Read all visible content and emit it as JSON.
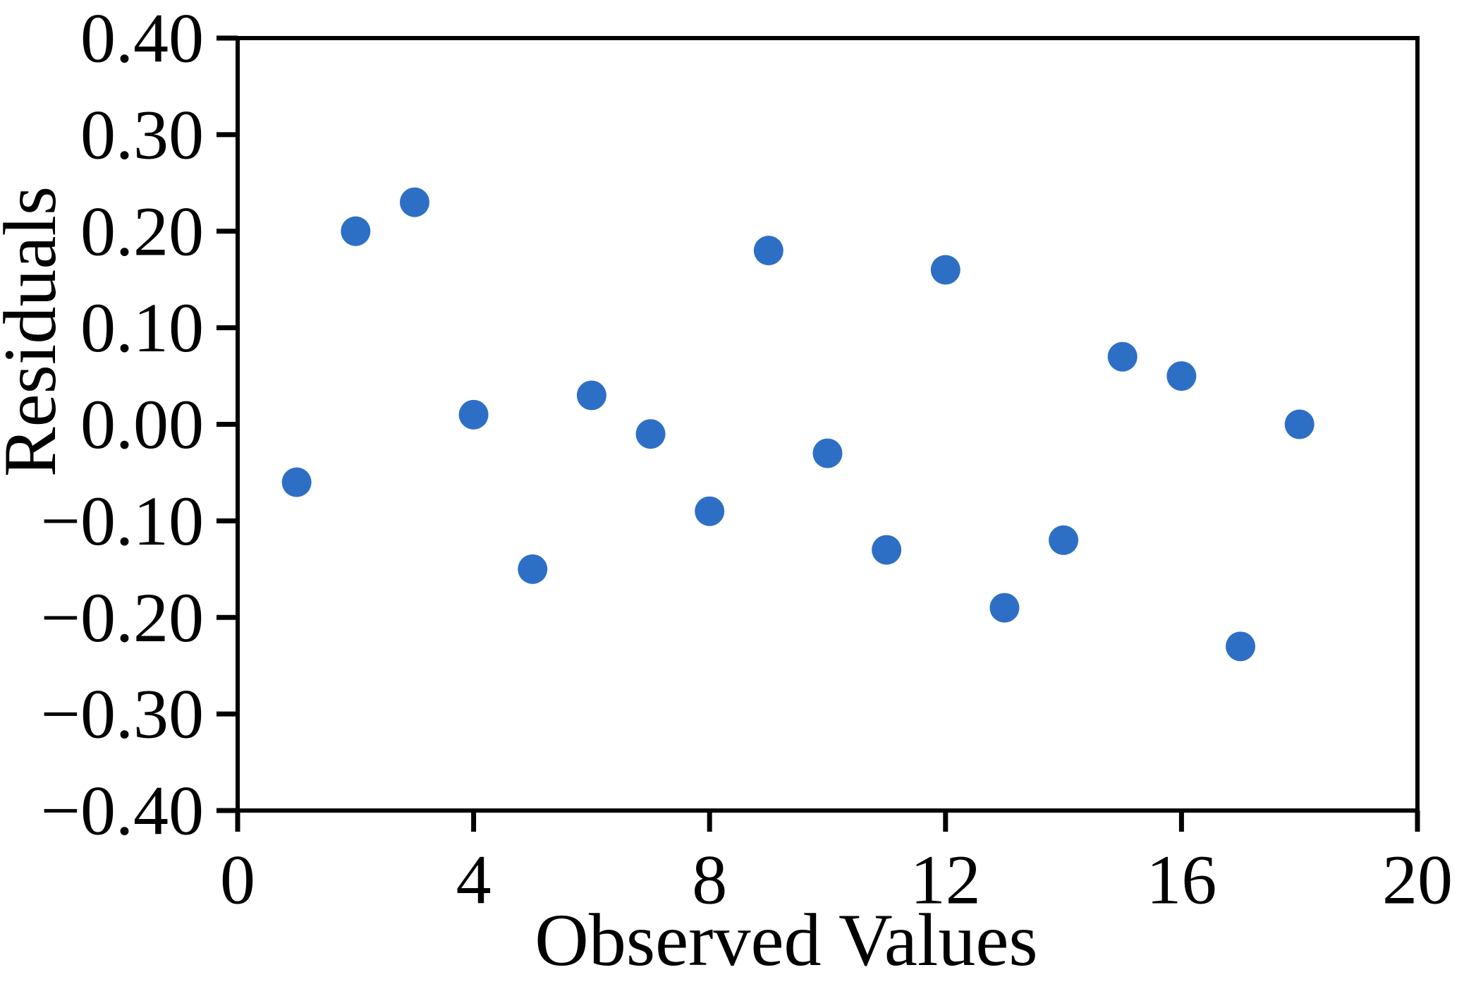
{
  "figure": {
    "background_color": "#ffffff"
  },
  "chart_data": {
    "type": "scatter",
    "title": "",
    "xlabel": "Observed Values",
    "ylabel": "Residuals",
    "xlim": [
      0,
      20
    ],
    "ylim": [
      -0.4,
      0.4
    ],
    "grid": false,
    "legend_position": "none",
    "xtick_values": [
      0,
      4,
      8,
      12,
      16,
      20
    ],
    "xtick_labels": [
      "0",
      "4",
      "8",
      "12",
      "16",
      "20"
    ],
    "ytick_values": [
      0.4,
      0.3,
      0.2,
      0.1,
      0.0,
      -0.1,
      -0.2,
      -0.3,
      -0.4
    ],
    "ytick_labels": [
      "0.40",
      "0.30",
      "0.20",
      "0.10",
      "0.00",
      "−0.10",
      "−0.20",
      "−0.30",
      "−0.40"
    ],
    "points": [
      {
        "x": 1,
        "y": -0.06
      },
      {
        "x": 2,
        "y": 0.2
      },
      {
        "x": 3,
        "y": 0.23
      },
      {
        "x": 4,
        "y": 0.01
      },
      {
        "x": 5,
        "y": -0.15
      },
      {
        "x": 6,
        "y": 0.03
      },
      {
        "x": 7,
        "y": -0.01
      },
      {
        "x": 8,
        "y": -0.09
      },
      {
        "x": 9,
        "y": 0.18
      },
      {
        "x": 10,
        "y": -0.03
      },
      {
        "x": 11,
        "y": -0.13
      },
      {
        "x": 12,
        "y": 0.16
      },
      {
        "x": 13,
        "y": -0.19
      },
      {
        "x": 14,
        "y": -0.12
      },
      {
        "x": 15,
        "y": 0.07
      },
      {
        "x": 16,
        "y": 0.05
      },
      {
        "x": 17,
        "y": -0.23
      },
      {
        "x": 18,
        "y": 0.0
      }
    ],
    "marker_color": "#2E6FC6",
    "axis_color": "#000000"
  }
}
